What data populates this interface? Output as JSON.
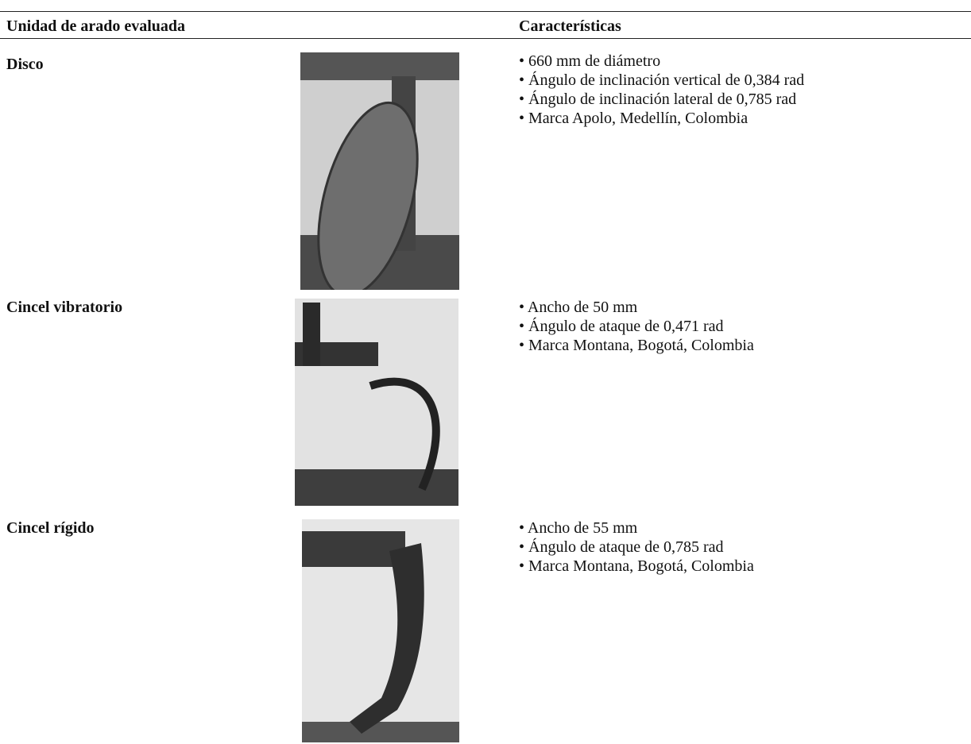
{
  "table": {
    "header": [
      "Unidad de arado evaluada",
      "Características"
    ],
    "rows": [
      {
        "name": "Disco",
        "features": [
          "• 660 mm de diámetro",
          "• Ángulo de inclinación vertical de 0,384 rad",
          "• Ángulo de inclinación lateral de 0,785 rad",
          "• Marca Apolo, Medellín, Colombia"
        ]
      },
      {
        "name": "Cincel vibratorio",
        "features": [
          "• Ancho de 50 mm",
          "• Ángulo de ataque de 0,471 rad",
          "• Marca Montana, Bogotá, Colombia"
        ]
      },
      {
        "name": "Cincel rígido",
        "features": [
          "• Ancho de 55 mm",
          "• Ángulo de ataque de 0,785 rad",
          "• Marca Montana, Bogotá, Colombia"
        ]
      }
    ]
  }
}
